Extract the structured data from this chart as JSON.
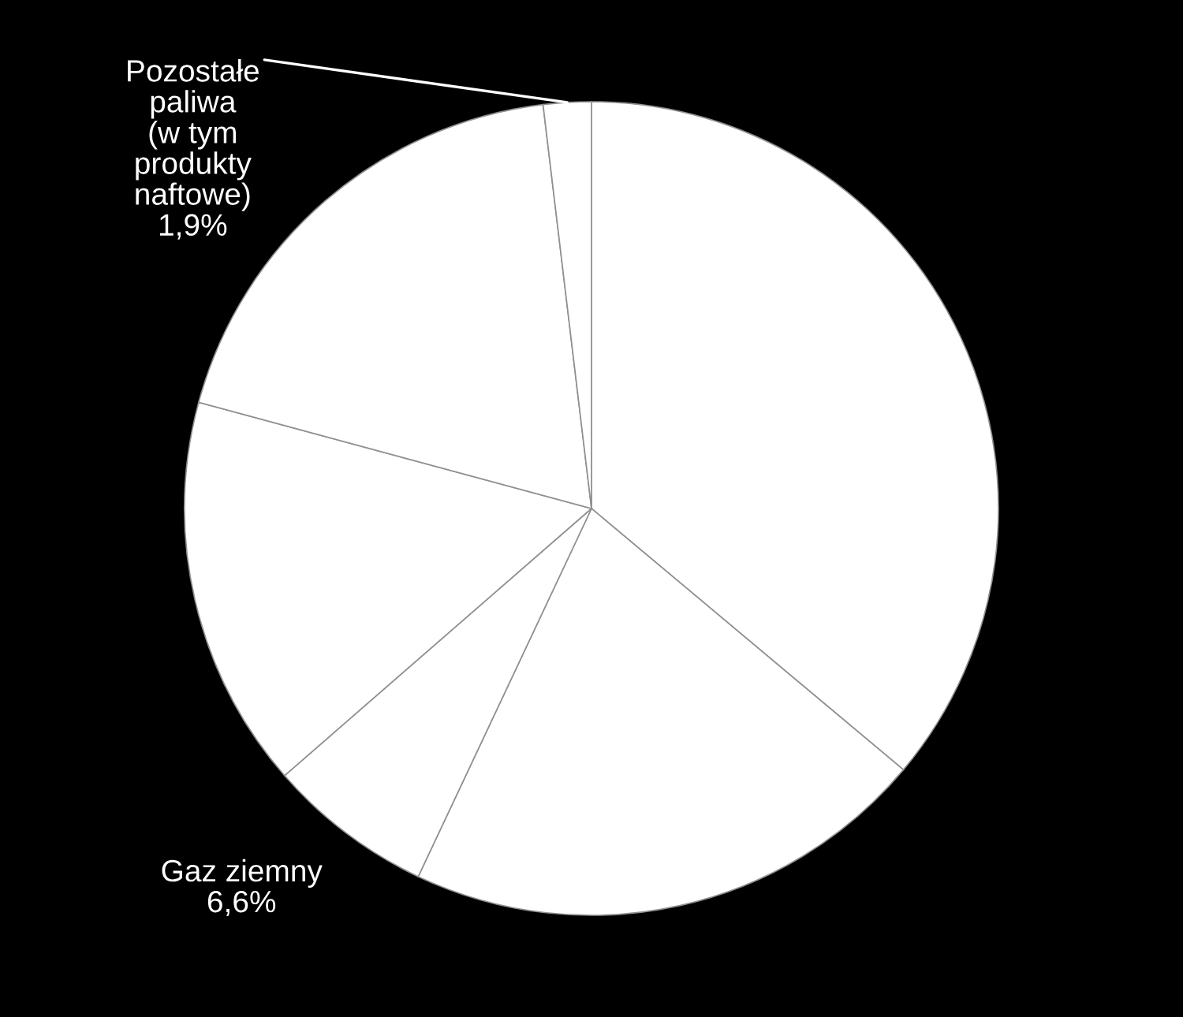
{
  "chart_data": {
    "type": "pie",
    "categories": [
      null,
      null,
      "Gaz ziemny",
      null,
      null,
      "Pozostałe\npaliwa\n(w tym\nprodukty\nnaftowe)"
    ],
    "values": [
      36.1,
      20.9,
      6.6,
      15.6,
      18.9,
      1.9
    ],
    "value_labels": [
      null,
      null,
      "6,6%",
      null,
      null,
      "1,9%"
    ],
    "colors": [
      "#ffffff",
      "#ffffff",
      "#ffffff",
      "#ffffff",
      "#ffffff",
      "#ffffff"
    ],
    "legend": false
  }
}
